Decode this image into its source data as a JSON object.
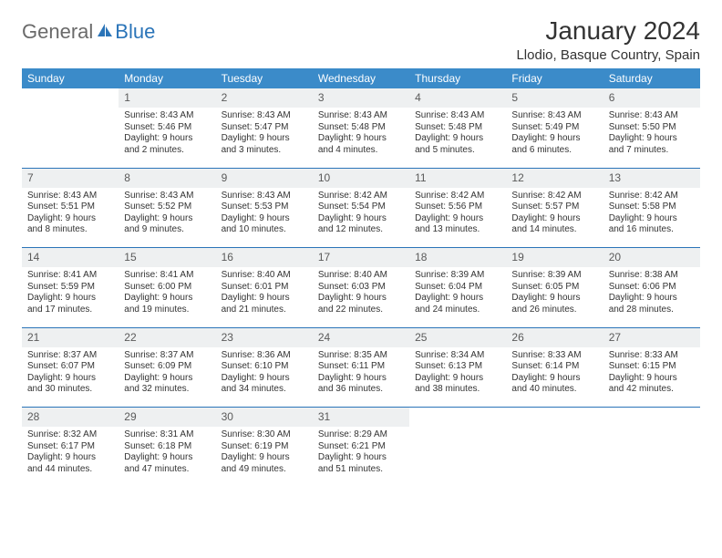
{
  "brand": {
    "part1": "General",
    "part2": "Blue"
  },
  "title": "January 2024",
  "location": "Llodio, Basque Country, Spain",
  "header_bg": "#3b8bc9",
  "accent_line": "#2a74b8",
  "daynum_bg": "#eef0f1",
  "weekdays": [
    "Sunday",
    "Monday",
    "Tuesday",
    "Wednesday",
    "Thursday",
    "Friday",
    "Saturday"
  ],
  "weeks": [
    [
      null,
      {
        "d": "1",
        "sr": "8:43 AM",
        "ss": "5:46 PM",
        "dl": "9 hours and 2 minutes."
      },
      {
        "d": "2",
        "sr": "8:43 AM",
        "ss": "5:47 PM",
        "dl": "9 hours and 3 minutes."
      },
      {
        "d": "3",
        "sr": "8:43 AM",
        "ss": "5:48 PM",
        "dl": "9 hours and 4 minutes."
      },
      {
        "d": "4",
        "sr": "8:43 AM",
        "ss": "5:48 PM",
        "dl": "9 hours and 5 minutes."
      },
      {
        "d": "5",
        "sr": "8:43 AM",
        "ss": "5:49 PM",
        "dl": "9 hours and 6 minutes."
      },
      {
        "d": "6",
        "sr": "8:43 AM",
        "ss": "5:50 PM",
        "dl": "9 hours and 7 minutes."
      }
    ],
    [
      {
        "d": "7",
        "sr": "8:43 AM",
        "ss": "5:51 PM",
        "dl": "9 hours and 8 minutes."
      },
      {
        "d": "8",
        "sr": "8:43 AM",
        "ss": "5:52 PM",
        "dl": "9 hours and 9 minutes."
      },
      {
        "d": "9",
        "sr": "8:43 AM",
        "ss": "5:53 PM",
        "dl": "9 hours and 10 minutes."
      },
      {
        "d": "10",
        "sr": "8:42 AM",
        "ss": "5:54 PM",
        "dl": "9 hours and 12 minutes."
      },
      {
        "d": "11",
        "sr": "8:42 AM",
        "ss": "5:56 PM",
        "dl": "9 hours and 13 minutes."
      },
      {
        "d": "12",
        "sr": "8:42 AM",
        "ss": "5:57 PM",
        "dl": "9 hours and 14 minutes."
      },
      {
        "d": "13",
        "sr": "8:42 AM",
        "ss": "5:58 PM",
        "dl": "9 hours and 16 minutes."
      }
    ],
    [
      {
        "d": "14",
        "sr": "8:41 AM",
        "ss": "5:59 PM",
        "dl": "9 hours and 17 minutes."
      },
      {
        "d": "15",
        "sr": "8:41 AM",
        "ss": "6:00 PM",
        "dl": "9 hours and 19 minutes."
      },
      {
        "d": "16",
        "sr": "8:40 AM",
        "ss": "6:01 PM",
        "dl": "9 hours and 21 minutes."
      },
      {
        "d": "17",
        "sr": "8:40 AM",
        "ss": "6:03 PM",
        "dl": "9 hours and 22 minutes."
      },
      {
        "d": "18",
        "sr": "8:39 AM",
        "ss": "6:04 PM",
        "dl": "9 hours and 24 minutes."
      },
      {
        "d": "19",
        "sr": "8:39 AM",
        "ss": "6:05 PM",
        "dl": "9 hours and 26 minutes."
      },
      {
        "d": "20",
        "sr": "8:38 AM",
        "ss": "6:06 PM",
        "dl": "9 hours and 28 minutes."
      }
    ],
    [
      {
        "d": "21",
        "sr": "8:37 AM",
        "ss": "6:07 PM",
        "dl": "9 hours and 30 minutes."
      },
      {
        "d": "22",
        "sr": "8:37 AM",
        "ss": "6:09 PM",
        "dl": "9 hours and 32 minutes."
      },
      {
        "d": "23",
        "sr": "8:36 AM",
        "ss": "6:10 PM",
        "dl": "9 hours and 34 minutes."
      },
      {
        "d": "24",
        "sr": "8:35 AM",
        "ss": "6:11 PM",
        "dl": "9 hours and 36 minutes."
      },
      {
        "d": "25",
        "sr": "8:34 AM",
        "ss": "6:13 PM",
        "dl": "9 hours and 38 minutes."
      },
      {
        "d": "26",
        "sr": "8:33 AM",
        "ss": "6:14 PM",
        "dl": "9 hours and 40 minutes."
      },
      {
        "d": "27",
        "sr": "8:33 AM",
        "ss": "6:15 PM",
        "dl": "9 hours and 42 minutes."
      }
    ],
    [
      {
        "d": "28",
        "sr": "8:32 AM",
        "ss": "6:17 PM",
        "dl": "9 hours and 44 minutes."
      },
      {
        "d": "29",
        "sr": "8:31 AM",
        "ss": "6:18 PM",
        "dl": "9 hours and 47 minutes."
      },
      {
        "d": "30",
        "sr": "8:30 AM",
        "ss": "6:19 PM",
        "dl": "9 hours and 49 minutes."
      },
      {
        "d": "31",
        "sr": "8:29 AM",
        "ss": "6:21 PM",
        "dl": "9 hours and 51 minutes."
      },
      null,
      null,
      null
    ]
  ]
}
